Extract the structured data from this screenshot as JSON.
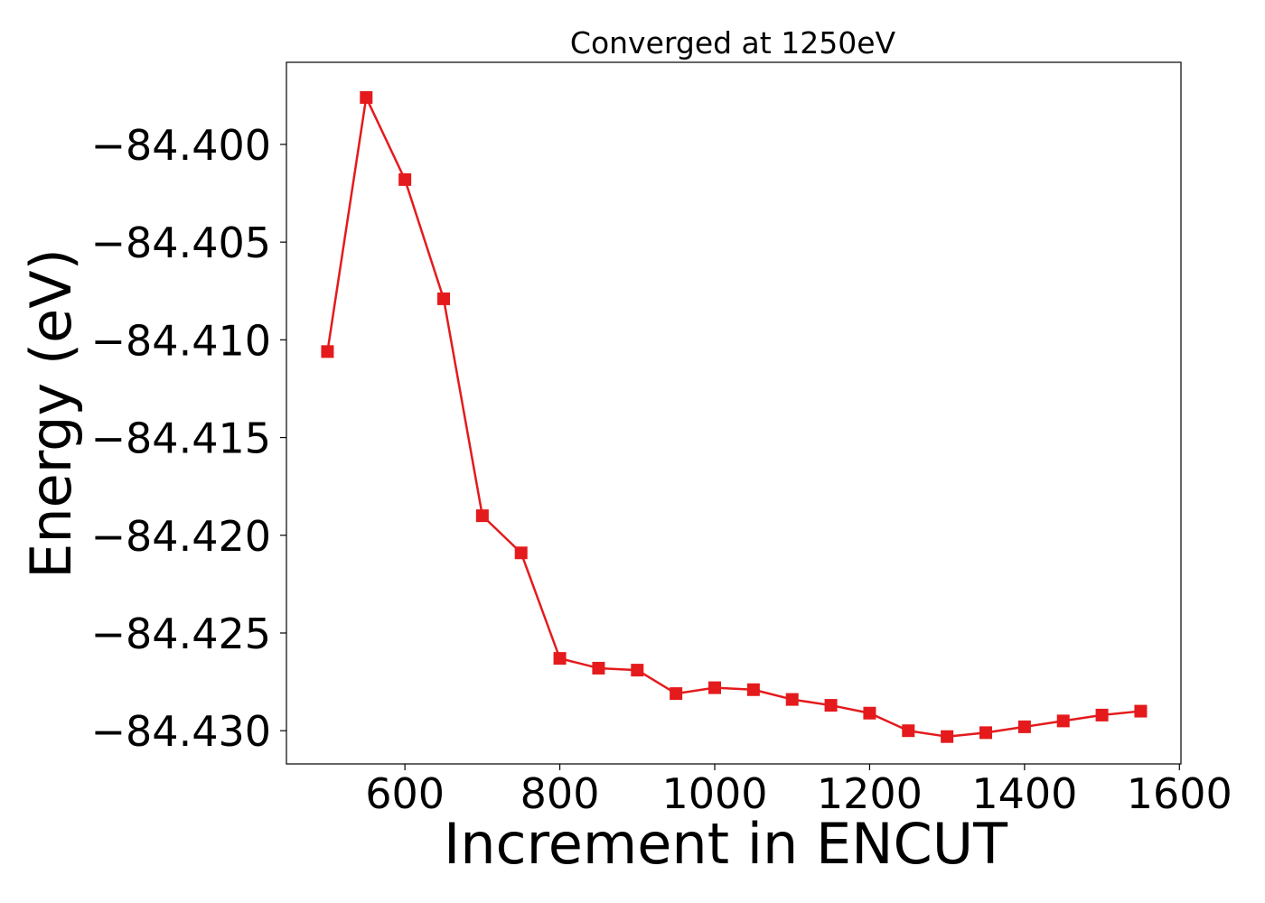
{
  "chart_data": {
    "type": "line",
    "title": "Converged at 1250eV",
    "xlabel": "Increment in ENCUT",
    "ylabel": "Energy (eV)",
    "xlim": [
      447,
      1602
    ],
    "ylim": [
      -84.4317,
      -84.3958
    ],
    "xticks": [
      600,
      800,
      1000,
      1200,
      1400,
      1600
    ],
    "xtick_labels": [
      "600",
      "800",
      "1000",
      "1200",
      "1400",
      "1600"
    ],
    "yticks": [
      -84.4,
      -84.405,
      -84.41,
      -84.415,
      -84.42,
      -84.425,
      -84.43
    ],
    "ytick_labels": [
      "−84.400",
      "−84.405",
      "−84.410",
      "−84.415",
      "−84.420",
      "−84.425",
      "−84.430"
    ],
    "grid": false,
    "color": "#e41a1c",
    "marker": "square",
    "series": [
      {
        "x": [
          500,
          550,
          600,
          650,
          700,
          750,
          800,
          850,
          900,
          950,
          1000,
          1050,
          1100,
          1150,
          1200,
          1250,
          1300,
          1350,
          1400,
          1450,
          1500,
          1550
        ],
        "y": [
          -84.4106,
          -84.3976,
          -84.4018,
          -84.4079,
          -84.419,
          -84.4209,
          -84.4263,
          -84.4268,
          -84.4269,
          -84.4281,
          -84.4278,
          -84.4279,
          -84.4284,
          -84.4287,
          -84.4291,
          -84.43,
          -84.4303,
          -84.4301,
          -84.4298,
          -84.4295,
          -84.4292,
          -84.429
        ]
      }
    ]
  }
}
